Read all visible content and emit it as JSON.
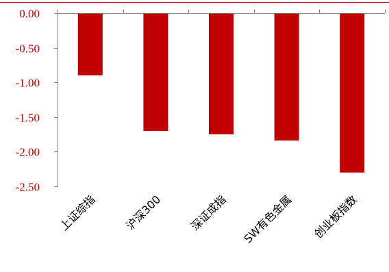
{
  "chart_data": {
    "type": "bar",
    "title": "",
    "xlabel": "",
    "ylabel": "",
    "categories": [
      "上证综指",
      "沪深300",
      "深证成指",
      "SW有色金属",
      "创业板指数"
    ],
    "series": [
      {
        "values": [
          -0.9,
          -1.7,
          -1.75,
          -1.84,
          -2.3
        ]
      }
    ],
    "ylim": [
      -2.5,
      0
    ],
    "yticks": [
      0,
      -0.5,
      -1.0,
      -1.5,
      -2.0,
      -2.5
    ],
    "ytick_labels": [
      "0.00",
      "-0.50",
      "-1.00",
      "-1.50",
      "-2.00",
      "-2.50"
    ],
    "colors": {
      "bar": "#c00000",
      "tick_text": "#c00000",
      "axis": "#808080",
      "top_rule": "#c00000"
    },
    "legend": "none",
    "grid": false
  }
}
